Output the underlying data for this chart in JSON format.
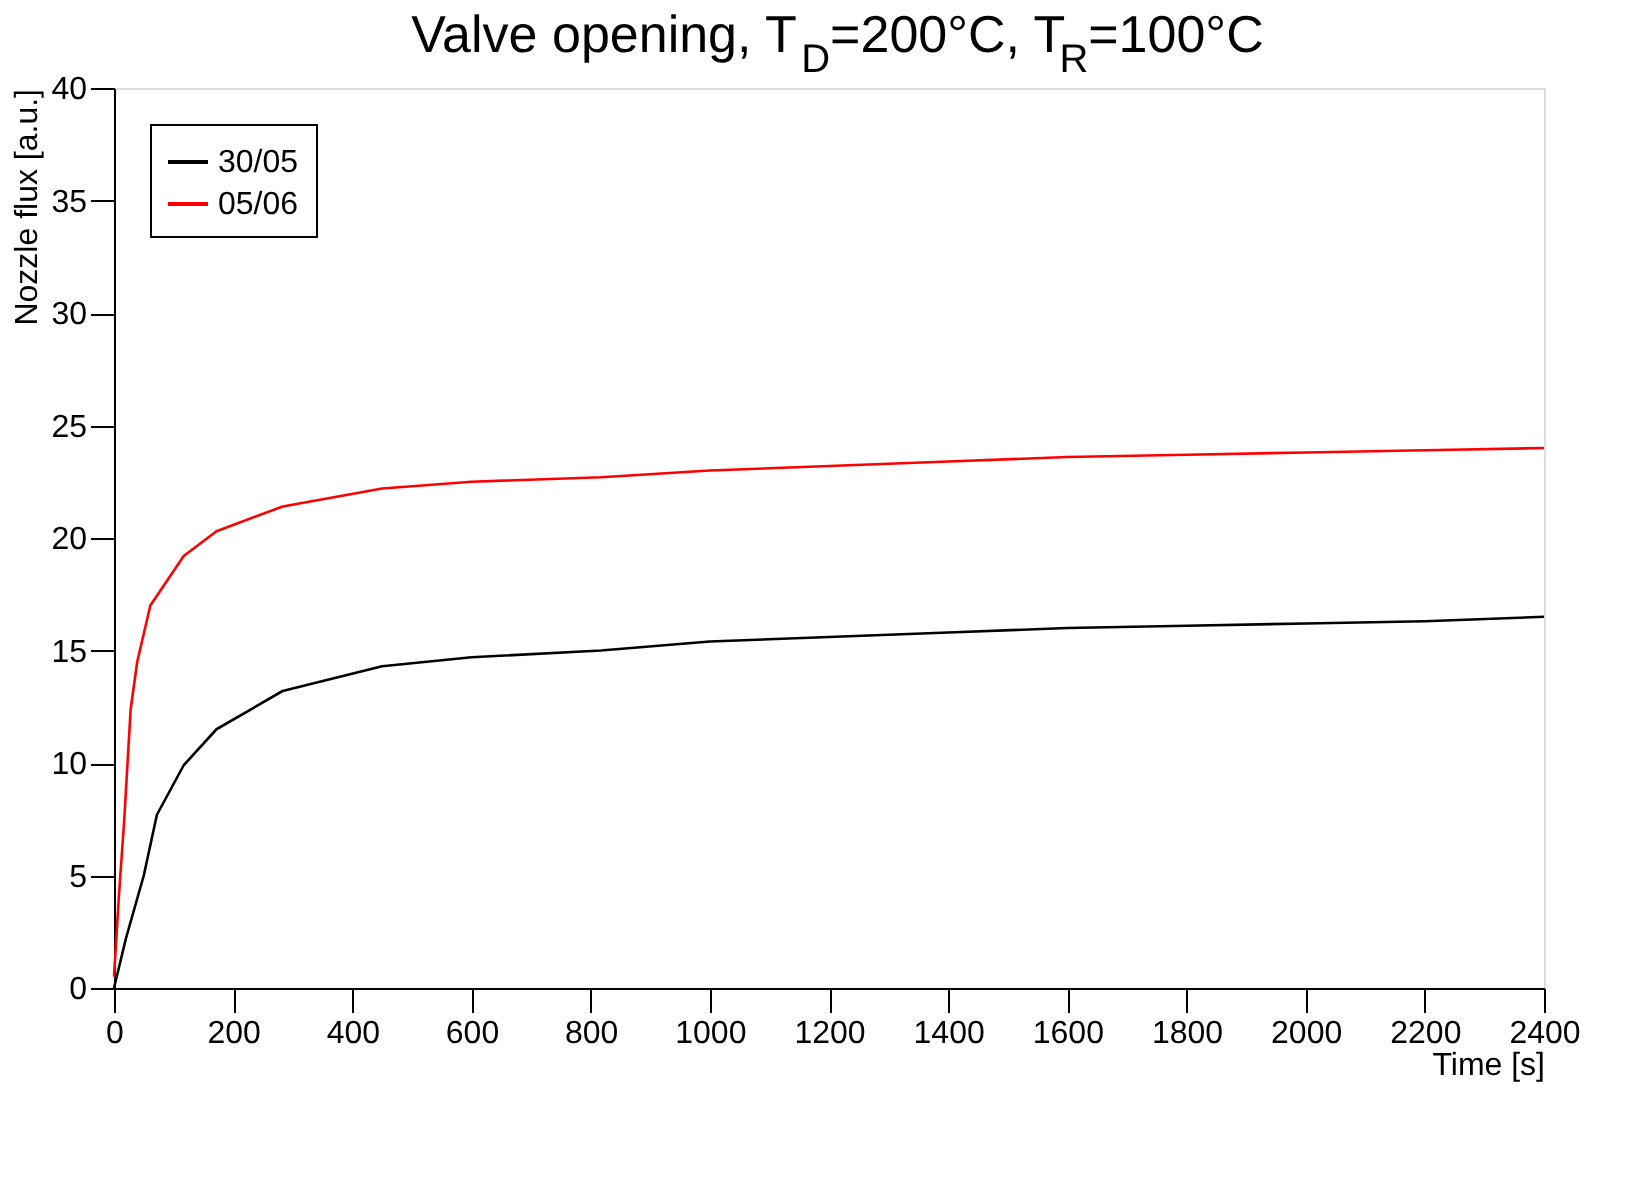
{
  "chart_data": {
    "type": "line",
    "title": "Valve opening, T$_{D}$=200°C, T$_{R}$=100°C",
    "xlabel": "Time [s]",
    "ylabel": "Nozzle flux [a.u.]",
    "xlim": [
      0,
      2400
    ],
    "xticks": [
      0,
      200,
      400,
      600,
      800,
      1000,
      1200,
      1400,
      1600,
      1800,
      2000,
      2200,
      2400
    ],
    "ylim": [
      0,
      40
    ],
    "yticks": [
      0,
      5,
      10,
      15,
      20,
      25,
      30,
      35,
      40
    ],
    "grid": false,
    "legend": "top left",
    "marker": "none",
    "line_style": "solid",
    "series": [
      {
        "name": "30/05",
        "color": "#000000",
        "x": [
          0,
          20,
          50,
          72,
          117,
          172,
          283,
          450,
          600,
          817,
          1000,
          1200,
          1400,
          1600,
          1800,
          2000,
          2200,
          2400
        ],
        "values": [
          0,
          2.2,
          5.0,
          7.7,
          9.9,
          11.5,
          13.2,
          14.3,
          14.7,
          15.0,
          15.4,
          15.6,
          15.8,
          16.0,
          16.1,
          16.2,
          16.3,
          16.5
        ]
      },
      {
        "name": "05/06",
        "color": "#ff0000",
        "x": [
          0,
          8,
          17,
          28,
          39,
          61,
          117,
          172,
          283,
          450,
          600,
          817,
          1000,
          1200,
          1400,
          1600,
          1800,
          2000,
          2200,
          2400
        ],
        "values": [
          0.5,
          4.0,
          7.4,
          12.4,
          14.5,
          17.0,
          19.2,
          20.3,
          21.4,
          22.2,
          22.5,
          22.7,
          23.0,
          23.2,
          23.4,
          23.6,
          23.7,
          23.8,
          23.9,
          24.0
        ]
      }
    ]
  }
}
